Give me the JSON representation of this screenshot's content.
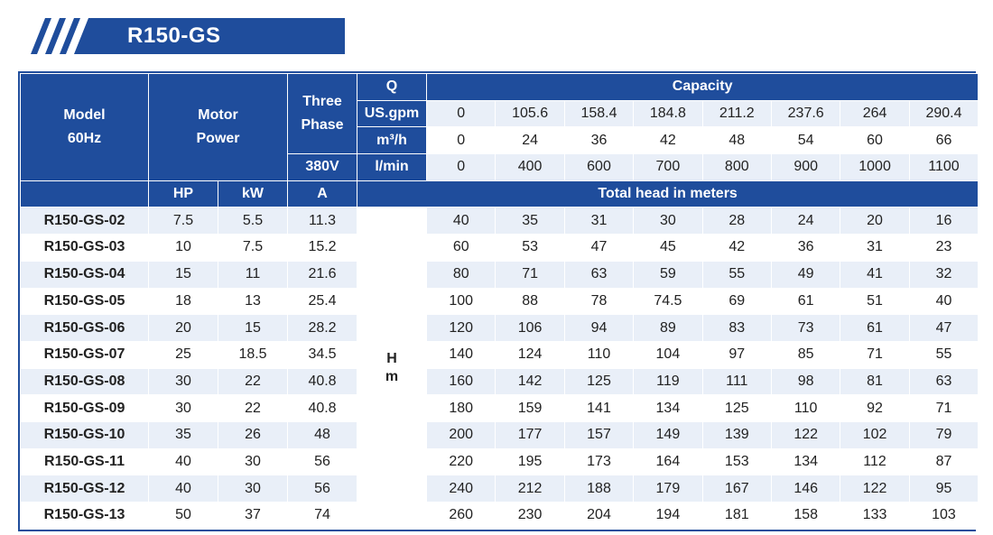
{
  "title": "R150-GS",
  "header": {
    "model_line1": "Model",
    "model_line2": "60Hz",
    "motor_line1": "Motor",
    "motor_line2": "Power",
    "phase_line1": "Three",
    "phase_line2": "Phase",
    "voltage": "380V",
    "q_label": "Q",
    "capacity_label": "Capacity",
    "units": [
      {
        "label": "US.gpm",
        "values": [
          "0",
          "105.6",
          "158.4",
          "184.8",
          "211.2",
          "237.6",
          "264",
          "290.4"
        ]
      },
      {
        "label": "m³/h",
        "values": [
          "0",
          "24",
          "36",
          "42",
          "48",
          "54",
          "60",
          "66"
        ]
      },
      {
        "label": "l/min",
        "values": [
          "0",
          "400",
          "600",
          "700",
          "800",
          "900",
          "1000",
          "1100"
        ]
      }
    ],
    "hp": "HP",
    "kw": "kW",
    "a": "A",
    "total_head": "Total head in meters",
    "h_line1": "H",
    "h_line2": "m"
  },
  "rows": [
    {
      "model": "R150-GS-02",
      "hp": "7.5",
      "kw": "5.5",
      "a": "11.3",
      "heads": [
        "40",
        "35",
        "31",
        "30",
        "28",
        "24",
        "20",
        "16"
      ]
    },
    {
      "model": "R150-GS-03",
      "hp": "10",
      "kw": "7.5",
      "a": "15.2",
      "heads": [
        "60",
        "53",
        "47",
        "45",
        "42",
        "36",
        "31",
        "23"
      ]
    },
    {
      "model": "R150-GS-04",
      "hp": "15",
      "kw": "11",
      "a": "21.6",
      "heads": [
        "80",
        "71",
        "63",
        "59",
        "55",
        "49",
        "41",
        "32"
      ]
    },
    {
      "model": "R150-GS-05",
      "hp": "18",
      "kw": "13",
      "a": "25.4",
      "heads": [
        "100",
        "88",
        "78",
        "74.5",
        "69",
        "61",
        "51",
        "40"
      ]
    },
    {
      "model": "R150-GS-06",
      "hp": "20",
      "kw": "15",
      "a": "28.2",
      "heads": [
        "120",
        "106",
        "94",
        "89",
        "83",
        "73",
        "61",
        "47"
      ]
    },
    {
      "model": "R150-GS-07",
      "hp": "25",
      "kw": "18.5",
      "a": "34.5",
      "heads": [
        "140",
        "124",
        "110",
        "104",
        "97",
        "85",
        "71",
        "55"
      ]
    },
    {
      "model": "R150-GS-08",
      "hp": "30",
      "kw": "22",
      "a": "40.8",
      "heads": [
        "160",
        "142",
        "125",
        "119",
        "111",
        "98",
        "81",
        "63"
      ]
    },
    {
      "model": "R150-GS-09",
      "hp": "30",
      "kw": "22",
      "a": "40.8",
      "heads": [
        "180",
        "159",
        "141",
        "134",
        "125",
        "110",
        "92",
        "71"
      ]
    },
    {
      "model": "R150-GS-10",
      "hp": "35",
      "kw": "26",
      "a": "48",
      "heads": [
        "200",
        "177",
        "157",
        "149",
        "139",
        "122",
        "102",
        "79"
      ]
    },
    {
      "model": "R150-GS-11",
      "hp": "40",
      "kw": "30",
      "a": "56",
      "heads": [
        "220",
        "195",
        "173",
        "164",
        "153",
        "134",
        "112",
        "87"
      ]
    },
    {
      "model": "R150-GS-12",
      "hp": "40",
      "kw": "30",
      "a": "56",
      "heads": [
        "240",
        "212",
        "188",
        "179",
        "167",
        "146",
        "122",
        "95"
      ]
    },
    {
      "model": "R150-GS-13",
      "hp": "50",
      "kw": "37",
      "a": "74",
      "heads": [
        "260",
        "230",
        "204",
        "194",
        "181",
        "158",
        "133",
        "103"
      ]
    }
  ],
  "colors": {
    "brand_blue": "#1f4d9c",
    "stripe_light": "#e9eff8",
    "stripe_white": "#ffffff"
  }
}
